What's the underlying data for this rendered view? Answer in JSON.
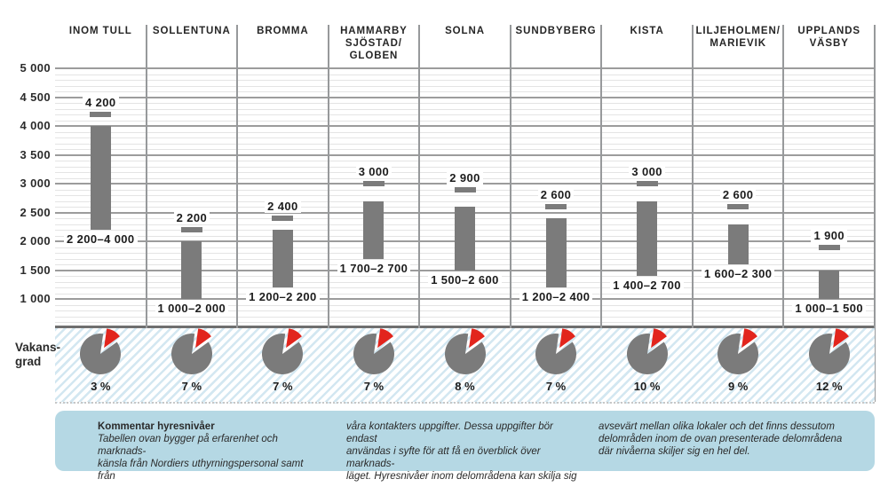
{
  "colors": {
    "bar_gray": "#7b7b7b",
    "pie_gray": "#7b7b7b",
    "pie_red": "#e2251d",
    "major_grid": "#9c9c9c",
    "minor_grid": "#e4e4e4",
    "hatch_blue": "#d3e7f1",
    "comment_bg": "#b5d8e4"
  },
  "chart_data": {
    "type": "bar",
    "subtype": "floating-range-bars-with-top-marker",
    "categories": [
      "INOM TULL",
      "SOLLENTUNA",
      "BROMMA",
      "HAMMARBY SJÖSTAD/GLOBEN",
      "SOLNA",
      "SUNDBYBERG",
      "KISTA",
      "LILJEHOLMEN/MARIEVIK",
      "UPPLANDS VÄSBY"
    ],
    "category_display": [
      "INOM TULL",
      "SOLLENTUNA",
      "BROMMA",
      "HAMMARBY\nSJÖSTAD/\nGLOBEN",
      "SOLNA",
      "SUNDBYBERG",
      "KISTA",
      "LILJEHOLMEN/\nMARIEVIK",
      "UPPLANDS\nVÄSBY"
    ],
    "y_axis": {
      "tick_values": [
        5000,
        4500,
        4000,
        3500,
        3000,
        2500,
        2000,
        1500,
        1000
      ],
      "tick_labels": [
        "5 000",
        "4 500",
        "4 000",
        "3 500",
        "3 000",
        "2 500",
        "2 000",
        "1 500",
        "1 000"
      ],
      "minor_step": 100,
      "grid": "on",
      "legend": "none"
    },
    "series": [
      {
        "name": "rent-range",
        "low": [
          2200,
          1000,
          1200,
          1700,
          1500,
          1200,
          1400,
          1600,
          1000
        ],
        "high": [
          4000,
          2000,
          2200,
          2700,
          2600,
          2400,
          2700,
          2300,
          1500
        ],
        "labels": [
          "2 200–4 000",
          "1 000–2 000",
          "1 200–2 200",
          "1 700–2 700",
          "1 500–2 600",
          "1 200–2 400",
          "1 400–2 700",
          "1 600–2 300",
          "1 000–1 500"
        ]
      },
      {
        "name": "top-level-marker",
        "values": [
          4200,
          2200,
          2400,
          3000,
          2900,
          2600,
          3000,
          2600,
          1900
        ],
        "labels": [
          "4 200",
          "2 200",
          "2 400",
          "3 000",
          "2 900",
          "2 600",
          "3 000",
          "2 600",
          "1 900"
        ]
      },
      {
        "name": "vacancy-rate",
        "values": [
          3,
          7,
          7,
          7,
          8,
          7,
          10,
          9,
          12
        ],
        "labels": [
          "3 %",
          "7 %",
          "7 %",
          "7 %",
          "8 %",
          "7 %",
          "10 %",
          "9 %",
          "12 %"
        ]
      }
    ]
  },
  "vacancy_row": {
    "label": "Vakans-\ngrad"
  },
  "comment": {
    "title": "Kommentar hyresnivåer",
    "columns": [
      "Tabellen ovan bygger på erfarenhet och marknads-\nkänsla från Nordiers uthyrningspersonal samt från",
      "våra kontakters uppgifter. Dessa uppgifter bör endast\nanvändas i syfte för att få en överblick över marknads-\nläget. Hyresnivåer inom delområdena kan skilja sig",
      "avsevärt mellan olika lokaler och det finns dessutom\ndelområden inom de ovan presenterade delområdena\ndär nivåerna skiljer sig en hel del."
    ]
  }
}
